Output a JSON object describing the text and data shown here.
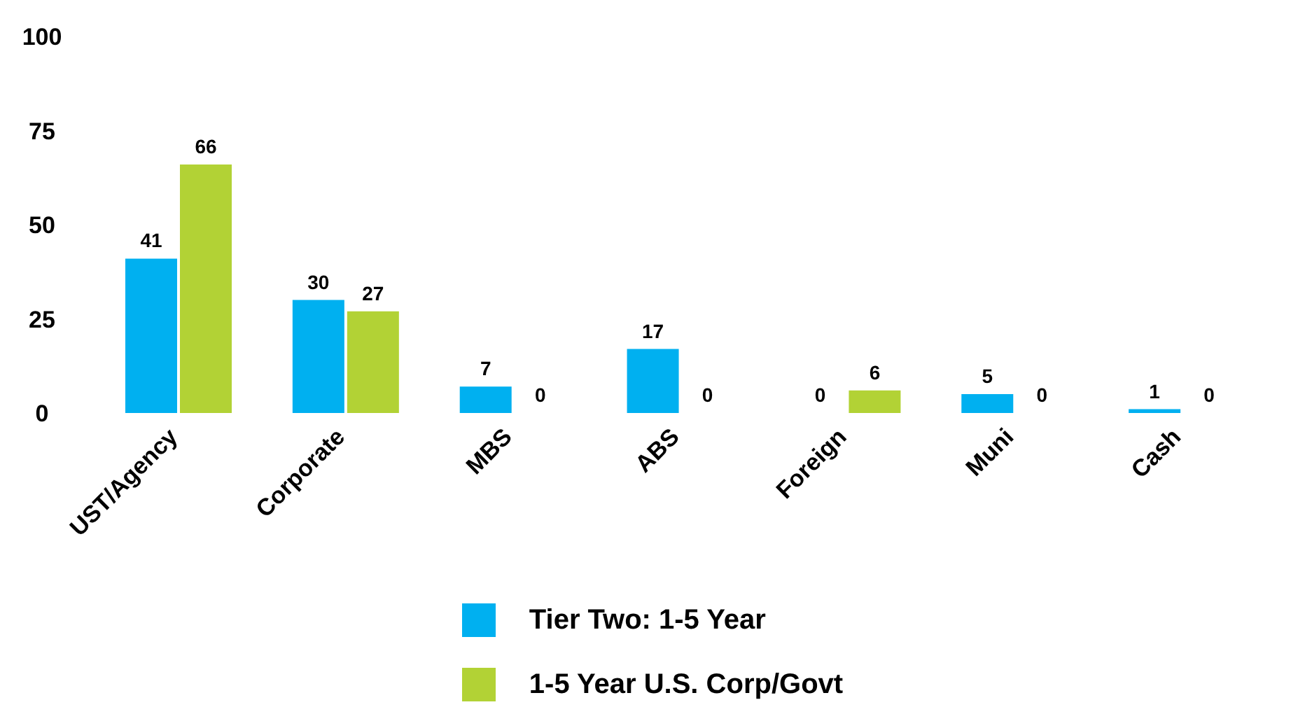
{
  "chart_data": {
    "type": "bar",
    "categories": [
      "UST/Agency",
      "Corporate",
      "MBS",
      "ABS",
      "Foreign",
      "Muni",
      "Cash"
    ],
    "series": [
      {
        "name": "Tier Two: 1-5 Year",
        "color": "#00b0f0",
        "values": [
          41,
          30,
          7,
          17,
          0,
          5,
          1
        ]
      },
      {
        "name": "1-5 Year U.S. Corp/Govt",
        "color": "#b2d235",
        "values": [
          66,
          27,
          0,
          0,
          6,
          0,
          0
        ]
      }
    ],
    "ylim": [
      0,
      100
    ],
    "yticks": [
      0,
      25,
      50,
      75,
      100
    ],
    "grid": false,
    "legend": "bottom",
    "data_labels": true
  }
}
